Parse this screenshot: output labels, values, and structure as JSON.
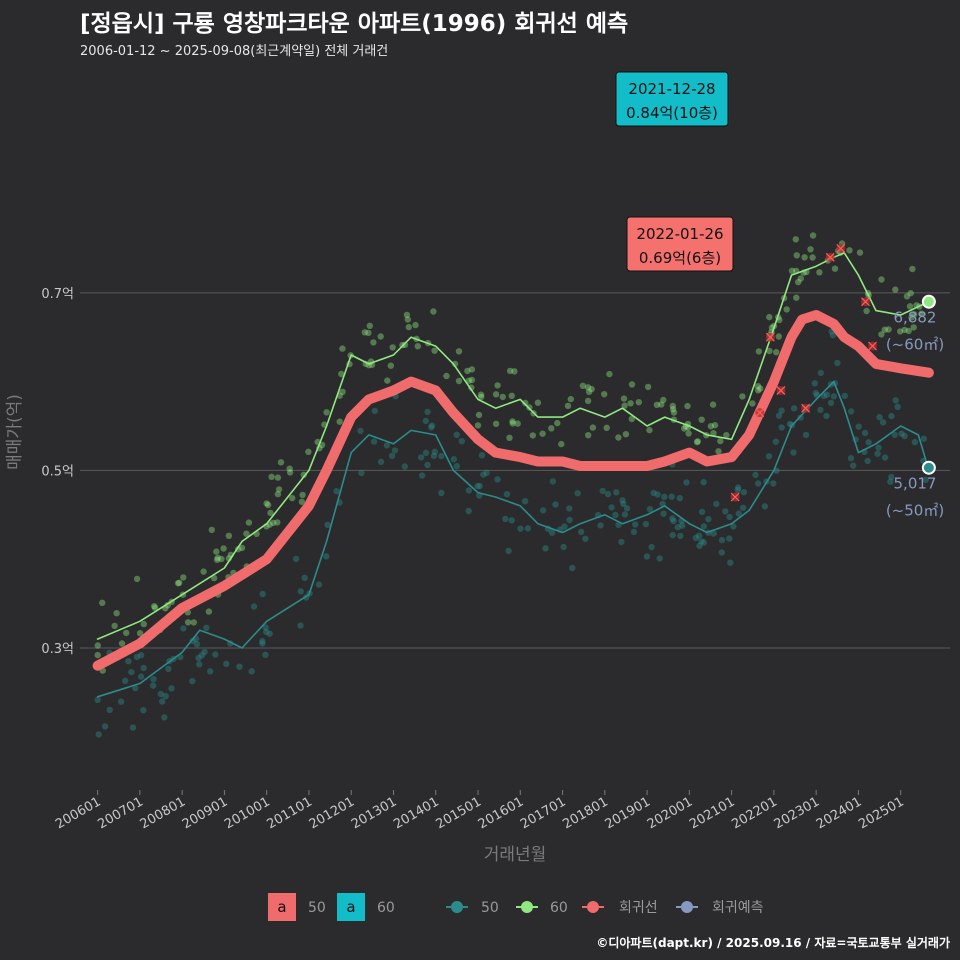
{
  "header": {
    "title": "[정읍시] 구룡 영창파크타운 아파트(1996) 회귀선 예측",
    "subtitle": "2006-01-12 ~ 2025-09-08(최근계약일) 전체 거래건"
  },
  "footer": "©디아파트(dapt.kr) / 2025.09.16 / 자료=국토교통부 실거래가",
  "colors": {
    "background": "#2b2b2d",
    "grid": "#5a5a5a",
    "s50": "#2c8c8c",
    "s60": "#90e880",
    "regression": "#f06b6b",
    "forecast": "#8799c0",
    "callout_max": "#12bdc9",
    "callout_recent": "#f4716e"
  },
  "chart_data": {
    "type": "scatter",
    "xlabel": "거래년월",
    "ylabel": "매매가(억)",
    "x_ticks": [
      "200601",
      "200701",
      "200801",
      "200901",
      "201001",
      "201101",
      "201201",
      "201301",
      "201401",
      "201501",
      "201601",
      "201701",
      "201801",
      "201901",
      "202001",
      "202101",
      "202201",
      "202301",
      "202401",
      "202501"
    ],
    "y_ticks": [
      {
        "value": 0.3,
        "label": "0.3억"
      },
      {
        "value": 0.5,
        "label": "0.5억"
      },
      {
        "value": 0.7,
        "label": "0.7억"
      }
    ],
    "xlim": [
      "2005-08",
      "2026-03"
    ],
    "ylim": [
      0.14,
      0.96
    ],
    "grid": true,
    "series": [
      {
        "name": "50",
        "type": "line",
        "color": "#2c8c8c",
        "points": [
          [
            "2006-01",
            0.245
          ],
          [
            "2007-01",
            0.26
          ],
          [
            "2008-01",
            0.295
          ],
          [
            "2008-06",
            0.32
          ],
          [
            "2009-01",
            0.31
          ],
          [
            "2009-06",
            0.3
          ],
          [
            "2010-01",
            0.33
          ],
          [
            "2011-01",
            0.36
          ],
          [
            "2011-06",
            0.42
          ],
          [
            "2012-01",
            0.52
          ],
          [
            "2012-06",
            0.54
          ],
          [
            "2013-01",
            0.53
          ],
          [
            "2013-06",
            0.545
          ],
          [
            "2014-01",
            0.54
          ],
          [
            "2014-06",
            0.5
          ],
          [
            "2015-01",
            0.475
          ],
          [
            "2015-06",
            0.47
          ],
          [
            "2016-01",
            0.46
          ],
          [
            "2016-06",
            0.44
          ],
          [
            "2017-01",
            0.43
          ],
          [
            "2017-06",
            0.44
          ],
          [
            "2018-01",
            0.45
          ],
          [
            "2018-06",
            0.44
          ],
          [
            "2019-01",
            0.45
          ],
          [
            "2019-06",
            0.46
          ],
          [
            "2020-01",
            0.44
          ],
          [
            "2020-06",
            0.43
          ],
          [
            "2021-01",
            0.44
          ],
          [
            "2021-06",
            0.455
          ],
          [
            "2022-01",
            0.5
          ],
          [
            "2022-06",
            0.55
          ],
          [
            "2023-01",
            0.58
          ],
          [
            "2023-06",
            0.6
          ],
          [
            "2023-09",
            0.57
          ],
          [
            "2024-01",
            0.52
          ],
          [
            "2024-06",
            0.53
          ],
          [
            "2025-01",
            0.55
          ],
          [
            "2025-06",
            0.54
          ],
          [
            "2025-09",
            0.5
          ]
        ]
      },
      {
        "name": "60",
        "type": "line",
        "color": "#90e880",
        "points": [
          [
            "2006-01",
            0.31
          ],
          [
            "2007-01",
            0.33
          ],
          [
            "2008-01",
            0.36
          ],
          [
            "2009-01",
            0.39
          ],
          [
            "2009-06",
            0.42
          ],
          [
            "2010-01",
            0.44
          ],
          [
            "2011-01",
            0.5
          ],
          [
            "2011-06",
            0.55
          ],
          [
            "2012-01",
            0.63
          ],
          [
            "2012-06",
            0.62
          ],
          [
            "2013-01",
            0.63
          ],
          [
            "2013-06",
            0.65
          ],
          [
            "2014-01",
            0.64
          ],
          [
            "2014-06",
            0.62
          ],
          [
            "2015-01",
            0.58
          ],
          [
            "2015-06",
            0.57
          ],
          [
            "2016-01",
            0.58
          ],
          [
            "2016-06",
            0.56
          ],
          [
            "2017-01",
            0.56
          ],
          [
            "2017-06",
            0.57
          ],
          [
            "2018-01",
            0.56
          ],
          [
            "2018-06",
            0.57
          ],
          [
            "2019-01",
            0.55
          ],
          [
            "2019-06",
            0.56
          ],
          [
            "2020-01",
            0.55
          ],
          [
            "2020-06",
            0.54
          ],
          [
            "2021-01",
            0.535
          ],
          [
            "2021-06",
            0.58
          ],
          [
            "2022-01",
            0.66
          ],
          [
            "2022-06",
            0.72
          ],
          [
            "2023-01",
            0.73
          ],
          [
            "2023-06",
            0.74
          ],
          [
            "2023-09",
            0.745
          ],
          [
            "2024-01",
            0.72
          ],
          [
            "2024-06",
            0.68
          ],
          [
            "2025-01",
            0.675
          ],
          [
            "2025-09",
            0.69
          ]
        ]
      },
      {
        "name": "회귀선",
        "type": "line",
        "color": "#f06b6b",
        "points": [
          [
            "2006-01",
            0.28
          ],
          [
            "2007-01",
            0.305
          ],
          [
            "2008-01",
            0.345
          ],
          [
            "2009-01",
            0.37
          ],
          [
            "2010-01",
            0.4
          ],
          [
            "2011-01",
            0.46
          ],
          [
            "2011-06",
            0.5
          ],
          [
            "2012-01",
            0.56
          ],
          [
            "2012-06",
            0.58
          ],
          [
            "2013-01",
            0.59
          ],
          [
            "2013-06",
            0.6
          ],
          [
            "2014-01",
            0.59
          ],
          [
            "2014-06",
            0.565
          ],
          [
            "2015-01",
            0.535
          ],
          [
            "2015-06",
            0.52
          ],
          [
            "2016-01",
            0.515
          ],
          [
            "2016-06",
            0.51
          ],
          [
            "2017-01",
            0.51
          ],
          [
            "2017-06",
            0.505
          ],
          [
            "2018-01",
            0.505
          ],
          [
            "2018-06",
            0.505
          ],
          [
            "2019-01",
            0.505
          ],
          [
            "2019-06",
            0.51
          ],
          [
            "2020-01",
            0.52
          ],
          [
            "2020-06",
            0.51
          ],
          [
            "2021-01",
            0.515
          ],
          [
            "2021-06",
            0.54
          ],
          [
            "2022-01",
            0.6
          ],
          [
            "2022-06",
            0.65
          ],
          [
            "2022-09",
            0.67
          ],
          [
            "2023-01",
            0.675
          ],
          [
            "2023-06",
            0.665
          ],
          [
            "2023-09",
            0.65
          ],
          [
            "2024-01",
            0.64
          ],
          [
            "2024-06",
            0.62
          ],
          [
            "2025-01",
            0.615
          ],
          [
            "2025-09",
            0.61
          ]
        ]
      }
    ],
    "forecast": [
      {
        "name": "60",
        "value": 0.69,
        "label_price": "6,882",
        "label_area": "(~60㎡)"
      },
      {
        "name": "50",
        "value": 0.503,
        "label_price": "5,017",
        "label_area": "(~50㎡)"
      }
    ],
    "callouts": [
      {
        "date": "2021-12-28",
        "price": "0.84억(10층)",
        "value": 0.84,
        "style": "max"
      },
      {
        "date": "2022-01-26",
        "price": "0.69억(6층)",
        "value": 0.69,
        "style": "recent"
      }
    ],
    "outliers": [
      [
        "2021-02",
        0.47
      ],
      [
        "2021-09",
        0.565
      ],
      [
        "2021-12",
        0.65
      ],
      [
        "2022-03",
        0.59
      ],
      [
        "2022-10",
        0.57
      ],
      [
        "2023-05",
        0.74
      ],
      [
        "2023-08",
        0.75
      ],
      [
        "2024-03",
        0.69
      ],
      [
        "2024-05",
        0.64
      ]
    ],
    "legend": {
      "fill_items": [
        {
          "letter": "a",
          "label": "50",
          "color": "#f06b6b"
        },
        {
          "letter": "a",
          "label": "60",
          "color": "#12bdc9"
        }
      ],
      "line_items": [
        {
          "label": "50",
          "color": "#2c8c8c"
        },
        {
          "label": "60",
          "color": "#90e880"
        },
        {
          "label": "회귀선",
          "color": "#f06b6b"
        },
        {
          "label": "회귀예측",
          "color": "#8799c0"
        }
      ],
      "position": "bottom"
    }
  }
}
